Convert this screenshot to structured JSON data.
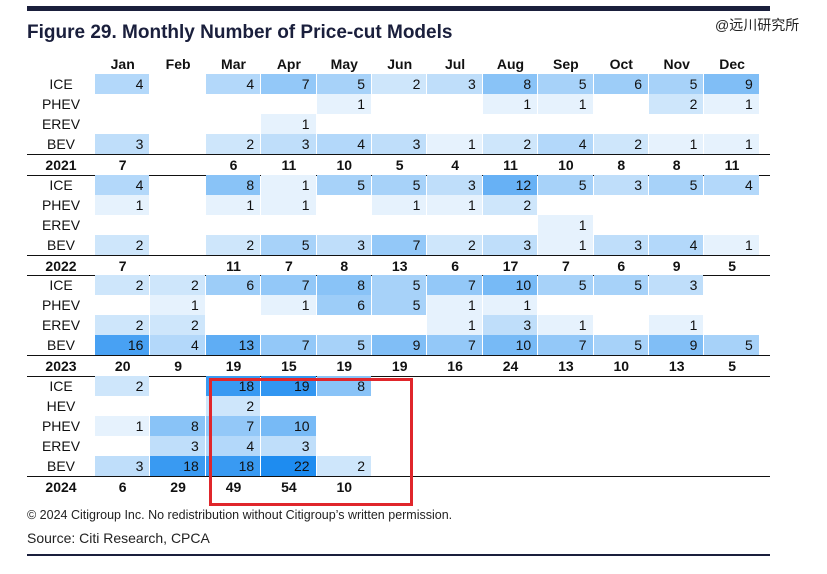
{
  "title": "Figure 29. Monthly Number of Price-cut Models",
  "watermark": "@远川研究所",
  "months": [
    "Jan",
    "Feb",
    "Mar",
    "Apr",
    "May",
    "Jun",
    "Jul",
    "Aug",
    "Sep",
    "Oct",
    "Nov",
    "Dec"
  ],
  "colors": {
    "rule": "#1a1f3c",
    "highlight": "#e0262b",
    "max_cell": "#1e8cf0",
    "min_cell": "#e6f2fd"
  },
  "sections": [
    {
      "total_label": "2021",
      "rows": [
        {
          "label": "ICE",
          "values": [
            "4",
            "",
            "4",
            "7",
            "5",
            "2",
            "3",
            "8",
            "5",
            "6",
            "5",
            "9"
          ]
        },
        {
          "label": "PHEV",
          "values": [
            "",
            "",
            "",
            "",
            "1",
            "",
            "",
            "1",
            "1",
            "",
            "2",
            "1"
          ]
        },
        {
          "label": "EREV",
          "values": [
            "",
            "",
            "",
            "1",
            "",
            "",
            "",
            "",
            "",
            "",
            "",
            ""
          ]
        },
        {
          "label": "BEV",
          "values": [
            "3",
            "",
            "2",
            "3",
            "4",
            "3",
            "1",
            "2",
            "4",
            "2",
            "1",
            "1"
          ]
        }
      ],
      "totals": [
        "7",
        "",
        "6",
        "11",
        "10",
        "5",
        "4",
        "11",
        "10",
        "8",
        "8",
        "11"
      ]
    },
    {
      "total_label": "2022",
      "rows": [
        {
          "label": "ICE",
          "values": [
            "4",
            "",
            "8",
            "1",
            "5",
            "5",
            "3",
            "12",
            "5",
            "3",
            "5",
            "4"
          ]
        },
        {
          "label": "PHEV",
          "values": [
            "1",
            "",
            "1",
            "1",
            "",
            "1",
            "1",
            "2",
            "",
            "",
            "",
            ""
          ]
        },
        {
          "label": "EREV",
          "values": [
            "",
            "",
            "",
            "",
            "",
            "",
            "",
            "",
            "1",
            "",
            "",
            ""
          ]
        },
        {
          "label": "BEV",
          "values": [
            "2",
            "",
            "2",
            "5",
            "3",
            "7",
            "2",
            "3",
            "1",
            "3",
            "4",
            "1"
          ]
        }
      ],
      "totals": [
        "7",
        "",
        "11",
        "7",
        "8",
        "13",
        "6",
        "17",
        "7",
        "6",
        "9",
        "5"
      ]
    },
    {
      "total_label": "2023",
      "rows": [
        {
          "label": "ICE",
          "values": [
            "2",
            "2",
            "6",
            "7",
            "8",
            "5",
            "7",
            "10",
            "5",
            "5",
            "3",
            ""
          ]
        },
        {
          "label": "PHEV",
          "values": [
            "",
            "1",
            "",
            "1",
            "6",
            "5",
            "1",
            "1",
            "",
            "",
            "",
            ""
          ]
        },
        {
          "label": "EREV",
          "values": [
            "2",
            "2",
            "",
            "",
            "",
            "",
            "1",
            "3",
            "1",
            "",
            "1",
            ""
          ]
        },
        {
          "label": "BEV",
          "values": [
            "16",
            "4",
            "13",
            "7",
            "5",
            "9",
            "7",
            "10",
            "7",
            "5",
            "9",
            "5"
          ]
        }
      ],
      "totals": [
        "20",
        "9",
        "19",
        "15",
        "19",
        "19",
        "16",
        "24",
        "13",
        "10",
        "13",
        "5"
      ]
    },
    {
      "total_label": "2024",
      "rows": [
        {
          "label": "ICE",
          "values": [
            "2",
            "",
            "18",
            "19",
            "8",
            "",
            "",
            "",
            "",
            "",
            "",
            ""
          ]
        },
        {
          "label": "HEV",
          "values": [
            "",
            "",
            "2",
            "",
            "",
            "",
            "",
            "",
            "",
            "",
            "",
            ""
          ]
        },
        {
          "label": "PHEV",
          "values": [
            "1",
            "8",
            "7",
            "10",
            "",
            "",
            "",
            "",
            "",
            "",
            "",
            ""
          ]
        },
        {
          "label": "EREV",
          "values": [
            "",
            "3",
            "4",
            "3",
            "",
            "",
            "",
            "",
            "",
            "",
            "",
            ""
          ]
        },
        {
          "label": "BEV",
          "values": [
            "3",
            "18",
            "18",
            "22",
            "2",
            "",
            "",
            "",
            "",
            "",
            "",
            ""
          ]
        }
      ],
      "totals": [
        "6",
        "29",
        "49",
        "54",
        "10",
        "",
        "",
        "",
        "",
        "",
        "",
        ""
      ]
    }
  ],
  "copyright": "© 2024 Citigroup Inc. No redistribution without Citigroup’s written permission.",
  "source": "Source: Citi Research, CPCA"
}
